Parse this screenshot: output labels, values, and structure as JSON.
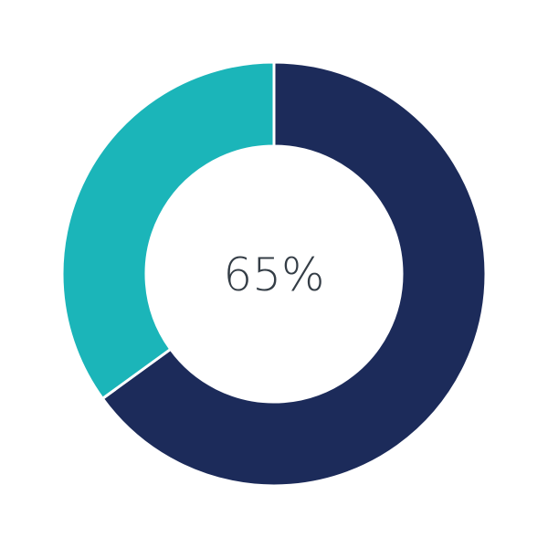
{
  "chart_data": {
    "type": "pie",
    "subtype": "donut",
    "center_label": "65%",
    "slices": [
      {
        "value": 65,
        "color": "#1c2b5a"
      },
      {
        "value": 35,
        "color": "#1bb5b9"
      }
    ],
    "start": "top",
    "direction": "clockwise",
    "separator_color": "#ffffff"
  }
}
